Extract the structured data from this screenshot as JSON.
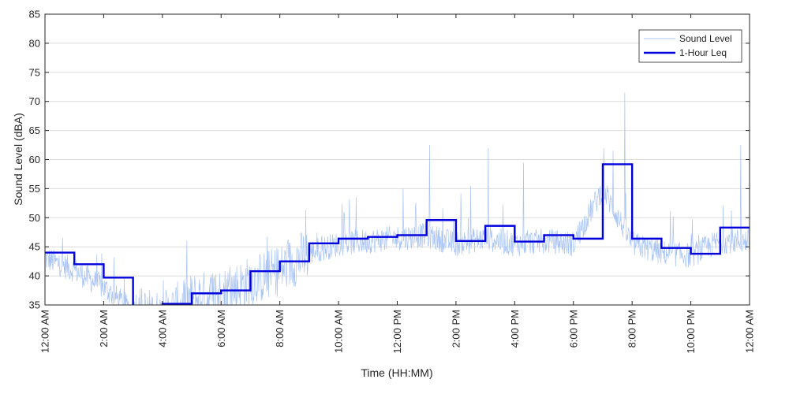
{
  "chart_data": {
    "type": "line",
    "title": "",
    "xlabel": "Time (HH:MM)",
    "ylabel": "Sound Level (dBA)",
    "xlim": [
      0,
      24
    ],
    "ylim": [
      35,
      85
    ],
    "y_ticks": [
      35,
      40,
      45,
      50,
      55,
      60,
      65,
      70,
      75,
      80,
      85
    ],
    "x_ticks": [
      {
        "hour": 0,
        "label": "12:00 AM"
      },
      {
        "hour": 2,
        "label": "2:00 AM"
      },
      {
        "hour": 4,
        "label": "4:00 AM"
      },
      {
        "hour": 6,
        "label": "6:00 AM"
      },
      {
        "hour": 8,
        "label": "8:00 AM"
      },
      {
        "hour": 10,
        "label": "10:00 AM"
      },
      {
        "hour": 12,
        "label": "12:00 PM"
      },
      {
        "hour": 14,
        "label": "2:00 PM"
      },
      {
        "hour": 16,
        "label": "4:00 PM"
      },
      {
        "hour": 18,
        "label": "6:00 PM"
      },
      {
        "hour": 20,
        "label": "8:00 PM"
      },
      {
        "hour": 22,
        "label": "10:00 PM"
      },
      {
        "hour": 24,
        "label": "12:00 AM"
      }
    ],
    "grid": "horizontal",
    "legend_position": "top-right",
    "series": [
      {
        "name": "Sound Level",
        "color": "#a9c4f5",
        "style": "thin-noisy-line",
        "hourly_baseline": [
          43,
          41,
          38,
          34,
          33,
          36,
          37,
          39,
          41,
          44,
          45.5,
          46,
          46.5,
          47,
          45.5,
          46.5,
          45.5,
          46,
          45.5,
          55,
          45.5,
          44,
          43.5,
          46
        ],
        "peaks": [
          {
            "hour": 13.1,
            "value": 62.5
          },
          {
            "hour": 15.1,
            "value": 62
          },
          {
            "hour": 16.3,
            "value": 59.5
          },
          {
            "hour": 19.35,
            "value": 61.5
          },
          {
            "hour": 19.75,
            "value": 71.5
          },
          {
            "hour": 23.7,
            "value": 62.5
          },
          {
            "hour": 14.5,
            "value": 55.5
          },
          {
            "hour": 12.2,
            "value": 55
          },
          {
            "hour": 10.6,
            "value": 53.5
          }
        ]
      },
      {
        "name": "1-Hour Leq",
        "color": "#0000dd",
        "style": "step",
        "hours": [
          0,
          1,
          2,
          3,
          4,
          5,
          6,
          7,
          8,
          9,
          10,
          11,
          12,
          13,
          14,
          15,
          16,
          17,
          18,
          19,
          20,
          21,
          22,
          23
        ],
        "values": [
          44,
          42,
          39.7,
          33,
          35.2,
          37,
          37.5,
          40.8,
          42.5,
          45.6,
          46.4,
          46.7,
          47,
          49.6,
          46,
          48.6,
          45.9,
          47,
          46.4,
          59.2,
          46.4,
          44.8,
          43.8,
          48.3
        ]
      }
    ]
  }
}
